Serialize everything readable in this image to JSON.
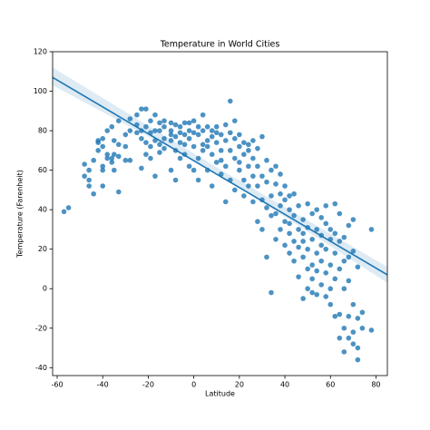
{
  "chart_data": {
    "type": "scatter",
    "title": "Temperature in World Cities",
    "x_label": "Latitude",
    "y_label": "Temperature (Farenheit)",
    "color": "#1f77b4",
    "xlim": [
      -62,
      85
    ],
    "ylim": [
      -44,
      120
    ],
    "xticks": [
      -60,
      -40,
      -20,
      0,
      20,
      40,
      60,
      80
    ],
    "yticks": [
      -40,
      -20,
      0,
      20,
      40,
      60,
      80,
      100,
      120
    ],
    "x": [
      -57,
      -55,
      -48,
      -48,
      -46,
      -46,
      -46,
      -44,
      -44,
      -42,
      -42,
      -42,
      -40,
      -40,
      -40,
      -40,
      -40,
      -38,
      -38,
      -38,
      -36,
      -36,
      -36,
      -35,
      -35,
      -35,
      -33,
      -33,
      -33,
      -33,
      -30,
      -30,
      -30,
      -28,
      -28,
      -28,
      -25,
      -25,
      -25,
      -23,
      -23,
      -23,
      -23,
      -21,
      -21,
      -21,
      -21,
      -19,
      -19,
      -19,
      -19,
      -17,
      -17,
      -17,
      -17,
      -15,
      -15,
      -15,
      -15,
      -13,
      -13,
      -13,
      -13,
      -10,
      -10,
      -10,
      -10,
      -10,
      -8,
      -8,
      -8,
      -8,
      -6,
      -6,
      -6,
      -6,
      -4,
      -4,
      -4,
      -4,
      -2,
      -2,
      -2,
      -2,
      0,
      0,
      0,
      0,
      2,
      2,
      2,
      2,
      4,
      4,
      4,
      4,
      6,
      6,
      6,
      6,
      8,
      8,
      8,
      8,
      10,
      10,
      10,
      10,
      12,
      12,
      12,
      12,
      14,
      14,
      14,
      14,
      16,
      16,
      16,
      16,
      18,
      18,
      18,
      18,
      20,
      20,
      20,
      20,
      22,
      22,
      22,
      22,
      24,
      24,
      24,
      24,
      26,
      26,
      26,
      26,
      28,
      28,
      28,
      28,
      30,
      30,
      30,
      30,
      32,
      32,
      32,
      32,
      34,
      34,
      34,
      34,
      36,
      36,
      36,
      36,
      38,
      38,
      38,
      38,
      40,
      40,
      40,
      40,
      42,
      42,
      42,
      42,
      42,
      44,
      44,
      44,
      44,
      46,
      46,
      46,
      46,
      48,
      48,
      48,
      48,
      48,
      50,
      50,
      50,
      50,
      50,
      52,
      52,
      52,
      52,
      52,
      54,
      54,
      54,
      54,
      54,
      56,
      56,
      56,
      56,
      56,
      58,
      58,
      58,
      58,
      58,
      60,
      60,
      60,
      60,
      60,
      62,
      62,
      62,
      62,
      62,
      64,
      64,
      64,
      64,
      64,
      66,
      66,
      66,
      66,
      66,
      68,
      68,
      68,
      68,
      68,
      70,
      70,
      70,
      70,
      70,
      72,
      72,
      72,
      72,
      74,
      74,
      78,
      78
    ],
    "values": [
      39,
      41,
      57,
      63,
      55,
      52,
      60,
      65,
      48,
      74,
      75,
      70,
      62,
      60,
      52,
      72,
      76,
      68,
      80,
      66,
      66,
      64,
      82,
      68,
      60,
      75,
      49,
      67,
      73,
      85,
      78,
      65,
      72,
      65,
      80,
      86,
      79,
      83,
      88,
      61,
      76,
      80,
      91,
      91,
      74,
      82,
      68,
      79,
      85,
      72,
      66,
      57,
      80,
      88,
      75,
      73,
      80,
      69,
      84,
      76,
      82,
      71,
      85,
      80,
      60,
      75,
      84,
      78,
      70,
      83,
      77,
      55,
      82,
      74,
      66,
      79,
      73,
      84,
      78,
      68,
      80,
      62,
      84,
      76,
      85,
      72,
      60,
      79,
      78,
      82,
      66,
      55,
      88,
      80,
      73,
      70,
      72,
      82,
      60,
      75,
      77,
      80,
      52,
      68,
      74,
      64,
      79,
      82,
      70,
      78,
      58,
      65,
      83,
      75,
      62,
      44,
      95,
      70,
      79,
      55,
      76,
      85,
      66,
      50,
      72,
      60,
      78,
      64,
      74,
      55,
      68,
      47,
      70,
      62,
      52,
      73,
      66,
      57,
      44,
      75,
      62,
      52,
      71,
      34,
      57,
      77,
      45,
      30,
      65,
      41,
      54,
      16,
      60,
      -2,
      47,
      37,
      53,
      38,
      62,
      25,
      48,
      30,
      42,
      58,
      45,
      34,
      22,
      52,
      40,
      28,
      18,
      47,
      33,
      37,
      24,
      48,
      14,
      30,
      42,
      21,
      6,
      35,
      24,
      16,
      -5,
      28,
      43,
      20,
      0,
      31,
      10,
      25,
      38,
      12,
      -2,
      5,
      40,
      18,
      30,
      -3,
      9,
      27,
      36,
      14,
      2,
      22,
      33,
      20,
      -4,
      8,
      42,
      25,
      12,
      30,
      0,
      -8,
      43,
      28,
      18,
      -14,
      5,
      38,
      24,
      -13,
      10,
      -25,
      26,
      14,
      -20,
      0,
      -32,
      16,
      -14,
      -25,
      4,
      32,
      19,
      -28,
      -8,
      35,
      -22,
      -30,
      -36,
      -15,
      11,
      -12,
      -20,
      30,
      -21
    ],
    "trend": {
      "x": [
        -62,
        85
      ],
      "values": [
        107,
        7
      ]
    },
    "band": {
      "x": [
        -62,
        10,
        85
      ],
      "lower": [
        103,
        58.5,
        3
      ],
      "upper": [
        112,
        61.5,
        11
      ]
    }
  }
}
